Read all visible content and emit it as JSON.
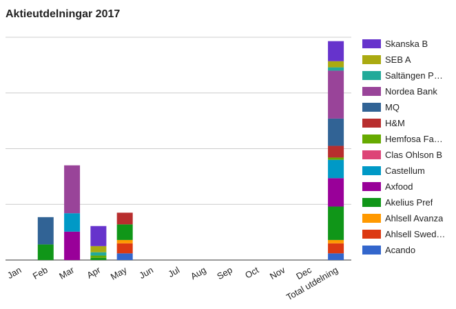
{
  "chart_data": {
    "type": "bar",
    "stacked": true,
    "title": "Aktieutdelningar 2017",
    "categories": [
      "Jan",
      "Feb",
      "Mar",
      "Apr",
      "May",
      "Jun",
      "Jul",
      "Aug",
      "Sep",
      "Oct",
      "Nov",
      "Dec",
      "Total utdelning"
    ],
    "ylim": [
      0,
      4000
    ],
    "grid": true,
    "legend_position": "right",
    "series": [
      {
        "name": "Acando",
        "color": "#3366cc",
        "values": [
          0,
          0,
          0,
          0,
          120,
          0,
          0,
          0,
          0,
          0,
          0,
          0,
          120
        ]
      },
      {
        "name": "Ahlsell Swed…",
        "color": "#dc3912",
        "values": [
          0,
          0,
          0,
          0,
          180,
          0,
          0,
          0,
          0,
          0,
          0,
          0,
          180
        ]
      },
      {
        "name": "Ahlsell Avanza",
        "color": "#ff9900",
        "values": [
          0,
          0,
          0,
          0,
          60,
          0,
          0,
          0,
          0,
          0,
          0,
          0,
          60
        ]
      },
      {
        "name": "Akelius Pref",
        "color": "#109618",
        "values": [
          0,
          280,
          0,
          40,
          280,
          0,
          0,
          0,
          0,
          0,
          0,
          0,
          600
        ]
      },
      {
        "name": "Axfood",
        "color": "#990099",
        "values": [
          0,
          0,
          510,
          0,
          0,
          0,
          0,
          0,
          0,
          0,
          0,
          0,
          510
        ]
      },
      {
        "name": "Castellum",
        "color": "#0099c6",
        "values": [
          0,
          0,
          330,
          0,
          0,
          0,
          0,
          0,
          0,
          0,
          0,
          0,
          330
        ]
      },
      {
        "name": "Clas Ohlson B",
        "color": "#dd4477",
        "values": [
          0,
          0,
          0,
          0,
          0,
          0,
          0,
          0,
          0,
          0,
          0,
          0,
          0
        ]
      },
      {
        "name": "Hemfosa Fa…",
        "color": "#66aa00",
        "values": [
          0,
          0,
          0,
          40,
          0,
          0,
          0,
          0,
          0,
          0,
          0,
          0,
          40
        ]
      },
      {
        "name": "H&M",
        "color": "#b82e2e",
        "values": [
          0,
          0,
          0,
          0,
          210,
          0,
          0,
          0,
          0,
          0,
          0,
          0,
          210
        ]
      },
      {
        "name": "MQ",
        "color": "#316395",
        "values": [
          0,
          490,
          0,
          0,
          0,
          0,
          0,
          0,
          0,
          0,
          0,
          0,
          490
        ]
      },
      {
        "name": "Nordea Bank",
        "color": "#994499",
        "values": [
          0,
          0,
          860,
          0,
          0,
          0,
          0,
          0,
          0,
          0,
          0,
          0,
          860
        ]
      },
      {
        "name": "Saltängen P…",
        "color": "#22aa99",
        "values": [
          0,
          0,
          0,
          60,
          0,
          0,
          0,
          0,
          0,
          0,
          0,
          0,
          60
        ]
      },
      {
        "name": "SEB A",
        "color": "#aaaa11",
        "values": [
          0,
          0,
          0,
          110,
          0,
          0,
          0,
          0,
          0,
          0,
          0,
          0,
          110
        ]
      },
      {
        "name": "Skanska B",
        "color": "#6633cc",
        "values": [
          0,
          0,
          0,
          360,
          0,
          0,
          0,
          0,
          0,
          0,
          0,
          0,
          360
        ]
      }
    ]
  }
}
